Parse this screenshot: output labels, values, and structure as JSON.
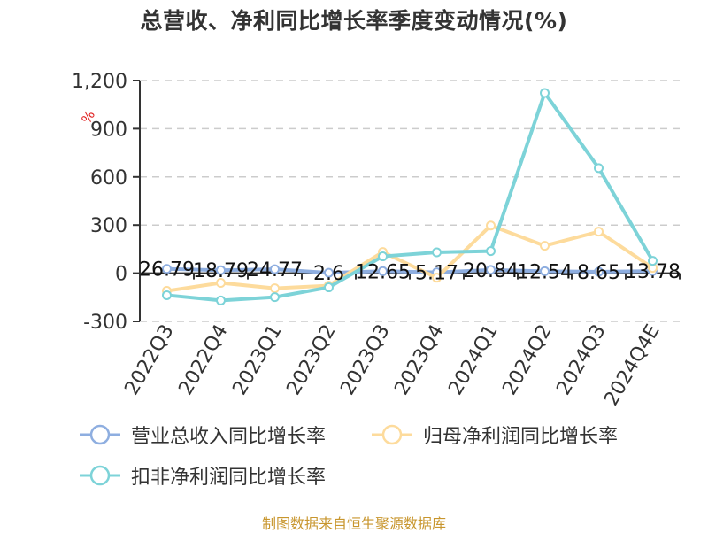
{
  "title": "总营收、净利同比增长率季度变动情况(%)",
  "source": "制图数据来自恒生聚源数据库",
  "y_unit": "%",
  "legend": [
    {
      "label": "营业总收入同比增长率",
      "color": "#8eaee0"
    },
    {
      "label": "归母净利润同比增长率",
      "color": "#fddb9c"
    },
    {
      "label": "扣非净利润同比增长率",
      "color": "#7dd3d8"
    }
  ],
  "chart_data": {
    "type": "line",
    "title": "总营收、净利同比增长率季度变动情况(%)",
    "xlabel": "",
    "ylabel": "%",
    "ylim": [
      -300,
      1200
    ],
    "yticks": [
      -300,
      0,
      300,
      600,
      900,
      1200
    ],
    "ytick_labels": [
      "-300",
      "0",
      "300",
      "600",
      "900",
      "1,200"
    ],
    "grid": true,
    "legend_position": "bottom",
    "categories": [
      "2022Q3",
      "2022Q4",
      "2023Q1",
      "2023Q2",
      "2023Q3",
      "2023Q4",
      "2024Q1",
      "2024Q2",
      "2024Q3",
      "2024Q4E"
    ],
    "series": [
      {
        "name": "营业总收入同比增长率",
        "color": "#8eaee0",
        "show_labels": true,
        "values": [
          26.79,
          18.79,
          24.77,
          2.6,
          12.65,
          5.17,
          20.84,
          12.54,
          8.65,
          13.78
        ]
      },
      {
        "name": "归母净利润同比增长率",
        "color": "#fddb9c",
        "show_labels": false,
        "values": [
          -110,
          -60,
          -94,
          -77,
          132,
          -28,
          297,
          171,
          259,
          33
        ]
      },
      {
        "name": "扣非净利润同比增长率",
        "color": "#7dd3d8",
        "show_labels": false,
        "values": [
          -137,
          -170,
          -149,
          -88,
          105,
          130,
          138,
          1123,
          655,
          77
        ]
      }
    ]
  }
}
